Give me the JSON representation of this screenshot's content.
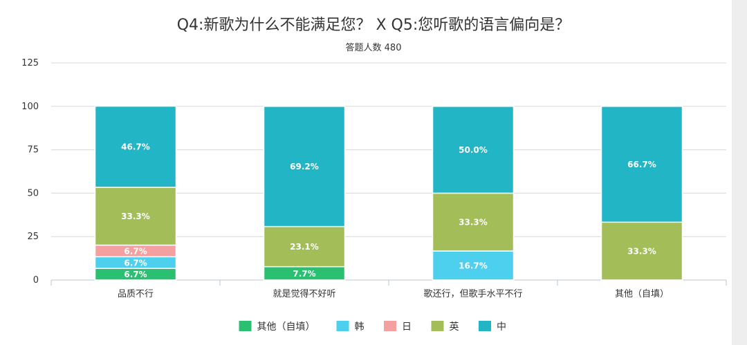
{
  "chart_data": {
    "type": "bar",
    "stacked": true,
    "title": "Q4:新歌为什么不能满足您？ X Q5:您听歌的语言偏向是？",
    "subtitle": "答题人数 480",
    "categories": [
      "品质不行",
      "就是觉得不好听",
      "歌还行，但歌手水平不行",
      "其他（自填）"
    ],
    "ylim": [
      0,
      125
    ],
    "yticks": [
      0,
      25,
      50,
      75,
      100,
      125
    ],
    "grid": true,
    "legend_position": "bottom",
    "series": [
      {
        "name": "其他（自填）",
        "color": "#2bbf72",
        "values": [
          6.7,
          7.7,
          0,
          0
        ],
        "labels": [
          "6.7%",
          "7.7%",
          "",
          ""
        ]
      },
      {
        "name": "韩",
        "color": "#4dcfee",
        "values": [
          6.7,
          0,
          16.7,
          0
        ],
        "labels": [
          "6.7%",
          "",
          "16.7%",
          ""
        ]
      },
      {
        "name": "日",
        "color": "#f4a0a0",
        "values": [
          6.7,
          0,
          0,
          0
        ],
        "labels": [
          "6.7%",
          "",
          "",
          ""
        ]
      },
      {
        "name": "英",
        "color": "#a3bd58",
        "values": [
          33.3,
          23.1,
          33.3,
          33.3
        ],
        "labels": [
          "33.3%",
          "23.1%",
          "33.3%",
          "33.3%"
        ]
      },
      {
        "name": "中",
        "color": "#22b5c5",
        "values": [
          46.7,
          69.2,
          50.0,
          66.7
        ],
        "labels": [
          "46.7%",
          "69.2%",
          "50.0%",
          "66.7%"
        ]
      }
    ]
  }
}
